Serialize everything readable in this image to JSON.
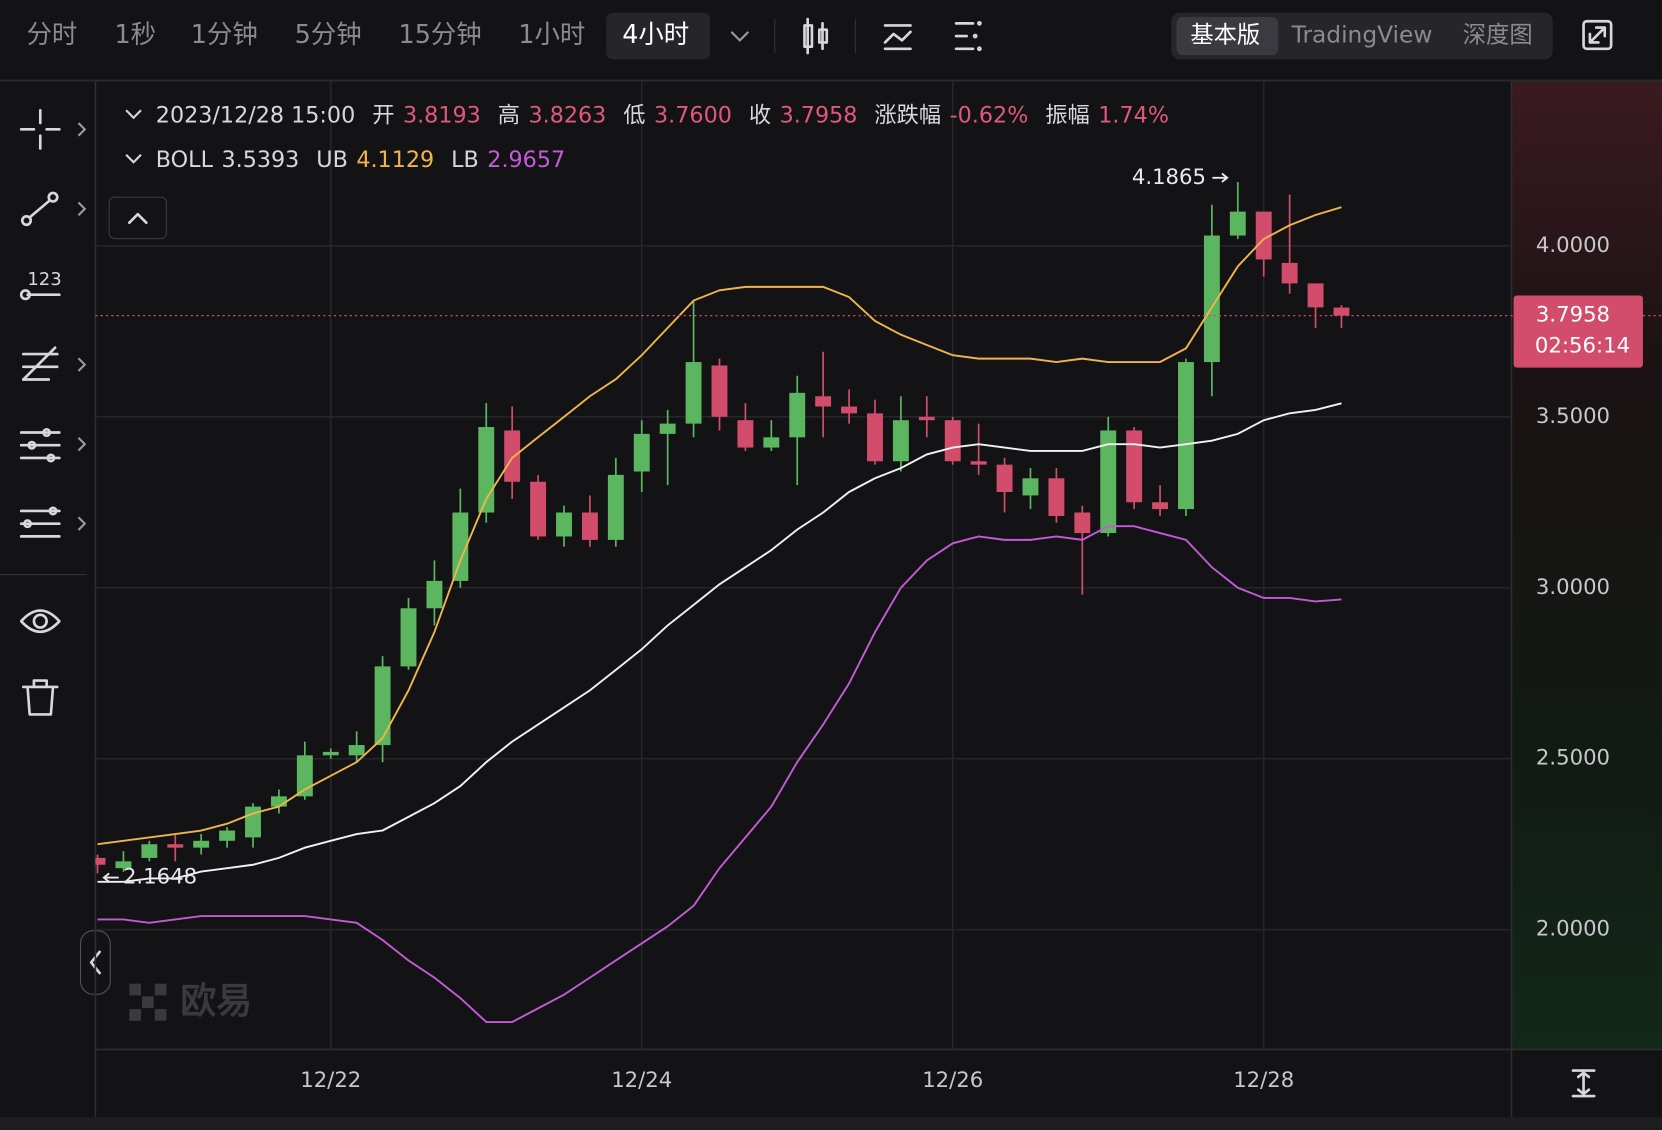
{
  "toolbar": {
    "intervals": [
      "分时",
      "1秒",
      "1分钟",
      "5分钟",
      "15分钟",
      "1小时",
      "4小时"
    ],
    "active_interval": 6,
    "views": [
      "基本版",
      "TradingView",
      "深度图"
    ],
    "active_view": 0
  },
  "chart_data": {
    "type": "candlestick",
    "header": {
      "time": "2023/12/28 15:00",
      "items": [
        {
          "label": "开",
          "value": "3.8193"
        },
        {
          "label": "高",
          "value": "3.8263"
        },
        {
          "label": "低",
          "value": "3.7600"
        },
        {
          "label": "收",
          "value": "3.7958"
        },
        {
          "label": "涨跌幅",
          "value": "-0.62%"
        },
        {
          "label": "振幅",
          "value": "1.74%"
        }
      ]
    },
    "categories": [
      null,
      null,
      null,
      null,
      null,
      null,
      null,
      null,
      null,
      "12/22",
      null,
      null,
      null,
      null,
      null,
      null,
      null,
      null,
      null,
      null,
      null,
      "12/24",
      null,
      null,
      null,
      null,
      null,
      null,
      null,
      null,
      null,
      null,
      null,
      "12/26",
      null,
      null,
      null,
      null,
      null,
      null,
      null,
      null,
      null,
      null,
      null,
      "12/28",
      null,
      null,
      null
    ],
    "open": [
      2.21,
      2.18,
      2.21,
      2.25,
      2.24,
      2.26,
      2.27,
      2.36,
      2.39,
      2.51,
      2.51,
      2.54,
      2.77,
      2.94,
      3.02,
      3.22,
      3.46,
      3.31,
      3.15,
      3.22,
      3.14,
      3.34,
      3.45,
      3.48,
      3.65,
      3.49,
      3.41,
      3.44,
      3.56,
      3.53,
      3.51,
      3.37,
      3.5,
      3.49,
      3.37,
      3.36,
      3.27,
      3.32,
      3.22,
      3.16,
      3.46,
      3.25,
      3.23,
      3.66,
      4.03,
      4.1,
      3.95,
      3.89,
      3.8193
    ],
    "high": [
      2.22,
      2.23,
      2.26,
      2.28,
      2.28,
      2.3,
      2.37,
      2.41,
      2.55,
      2.53,
      2.58,
      2.8,
      2.97,
      3.08,
      3.29,
      3.54,
      3.53,
      3.33,
      3.24,
      3.27,
      3.38,
      3.49,
      3.52,
      3.84,
      3.67,
      3.54,
      3.49,
      3.62,
      3.69,
      3.58,
      3.55,
      3.56,
      3.56,
      3.5,
      3.48,
      3.38,
      3.35,
      3.35,
      3.24,
      3.5,
      3.47,
      3.3,
      3.67,
      4.12,
      4.1865,
      4.1,
      4.15,
      3.89,
      3.8263
    ],
    "low": [
      2.1648,
      2.17,
      2.2,
      2.2,
      2.22,
      2.24,
      2.24,
      2.34,
      2.38,
      2.5,
      2.49,
      2.49,
      2.76,
      2.89,
      3.0,
      3.19,
      3.26,
      3.14,
      3.12,
      3.12,
      3.12,
      3.28,
      3.3,
      3.44,
      3.46,
      3.4,
      3.4,
      3.3,
      3.44,
      3.48,
      3.36,
      3.34,
      3.44,
      3.36,
      3.33,
      3.22,
      3.23,
      3.19,
      2.98,
      3.15,
      3.23,
      3.21,
      3.21,
      3.56,
      4.02,
      3.91,
      3.86,
      3.76,
      3.76
    ],
    "close": [
      2.19,
      2.2,
      2.25,
      2.24,
      2.26,
      2.29,
      2.36,
      2.39,
      2.51,
      2.52,
      2.54,
      2.77,
      2.94,
      3.02,
      3.22,
      3.47,
      3.31,
      3.15,
      3.22,
      3.14,
      3.33,
      3.45,
      3.48,
      3.66,
      3.5,
      3.41,
      3.44,
      3.57,
      3.53,
      3.51,
      3.37,
      3.49,
      3.49,
      3.37,
      3.36,
      3.28,
      3.32,
      3.21,
      3.16,
      3.46,
      3.25,
      3.23,
      3.66,
      4.03,
      4.1,
      3.96,
      3.89,
      3.82,
      3.7958
    ],
    "up_color": "#5cb660",
    "down_color": "#d14d6b",
    "overlays": [
      {
        "name": "BOLL",
        "color": "#f2f2f2",
        "values": [
          2.14,
          2.14,
          2.15,
          2.15,
          2.17,
          2.18,
          2.19,
          2.21,
          2.24,
          2.26,
          2.28,
          2.29,
          2.33,
          2.37,
          2.42,
          2.49,
          2.55,
          2.6,
          2.65,
          2.7,
          2.76,
          2.82,
          2.89,
          2.95,
          3.01,
          3.06,
          3.11,
          3.17,
          3.22,
          3.28,
          3.32,
          3.35,
          3.39,
          3.41,
          3.42,
          3.41,
          3.4,
          3.4,
          3.4,
          3.42,
          3.42,
          3.41,
          3.42,
          3.43,
          3.45,
          3.49,
          3.51,
          3.52,
          3.5393
        ]
      },
      {
        "name": "UB",
        "color": "#f0b44c",
        "values": [
          2.25,
          2.26,
          2.27,
          2.28,
          2.29,
          2.31,
          2.34,
          2.36,
          2.41,
          2.45,
          2.49,
          2.56,
          2.7,
          2.87,
          3.08,
          3.26,
          3.38,
          3.44,
          3.5,
          3.56,
          3.61,
          3.68,
          3.76,
          3.84,
          3.87,
          3.88,
          3.88,
          3.88,
          3.88,
          3.85,
          3.78,
          3.74,
          3.71,
          3.68,
          3.67,
          3.67,
          3.67,
          3.66,
          3.67,
          3.66,
          3.66,
          3.66,
          3.7,
          3.82,
          3.94,
          4.02,
          4.06,
          4.09,
          4.1129
        ]
      },
      {
        "name": "LB",
        "color": "#c55ad8",
        "values": [
          2.03,
          2.03,
          2.02,
          2.03,
          2.04,
          2.04,
          2.04,
          2.04,
          2.04,
          2.03,
          2.02,
          1.97,
          1.91,
          1.86,
          1.8,
          1.73,
          1.73,
          1.77,
          1.81,
          1.86,
          1.91,
          1.96,
          2.01,
          2.07,
          2.18,
          2.27,
          2.36,
          2.49,
          2.6,
          2.72,
          2.87,
          3.0,
          3.08,
          3.13,
          3.15,
          3.14,
          3.14,
          3.15,
          3.14,
          3.18,
          3.18,
          3.16,
          3.14,
          3.06,
          3.0,
          2.97,
          2.97,
          2.96,
          2.9657
        ]
      }
    ],
    "ylim": [
      1.65,
      4.48
    ],
    "yticks": [
      {
        "value": 2,
        "label": "2.0000"
      },
      {
        "value": 2.5,
        "label": "2.5000"
      },
      {
        "value": 3,
        "label": "3.0000"
      },
      {
        "value": 3.5,
        "label": "3.5000"
      },
      {
        "value": 4,
        "label": "4.0000"
      }
    ],
    "grid": true,
    "countdown": "02:56:14",
    "watermark": "欧易"
  }
}
